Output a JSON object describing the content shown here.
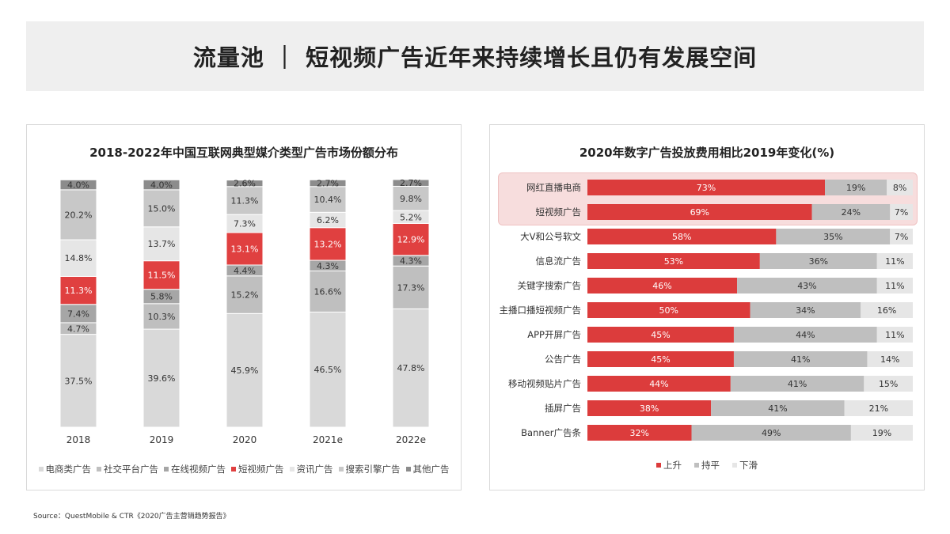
{
  "header": {
    "title": "流量池 ｜ 短视频广告近年来持续增长且仍有发展空间"
  },
  "left_chart": {
    "title": "2018-2022年中国互联网典型媒介类型广告市场份额分布",
    "legend": [
      "电商类广告",
      "社交平台广告",
      "在线视频广告",
      "短视频广告",
      "资讯广告",
      "搜索引擎广告",
      "其他广告"
    ],
    "legend_colors": [
      "#d9d9d9",
      "#bfbfbf",
      "#a6a6a6",
      "#e04040",
      "#e6e6e6",
      "#c8c8c8",
      "#8c8c8c"
    ]
  },
  "right_chart": {
    "title": "2020年数字广告投放费用相比2019年变化(%)",
    "legend": [
      "上升",
      "持平",
      "下滑"
    ],
    "legend_colors": [
      "#dc3c3c",
      "#bfbfbf",
      "#e6e6e6"
    ]
  },
  "source": "Source：QuestMobile & CTR《2020广告主营销趋势报告》",
  "chart_data": [
    {
      "type": "bar",
      "stacked": true,
      "percent": true,
      "title": "2018-2022年中国互联网典型媒介类型广告市场份额分布",
      "categories": [
        "2018",
        "2019",
        "2020",
        "2021e",
        "2022e"
      ],
      "series": [
        {
          "name": "电商类广告",
          "color": "#d9d9d9",
          "values": [
            37.5,
            39.6,
            45.9,
            46.5,
            47.8
          ]
        },
        {
          "name": "社交平台广告",
          "color": "#bfbfbf",
          "values": [
            4.7,
            10.3,
            15.2,
            16.6,
            17.3
          ]
        },
        {
          "name": "在线视频广告",
          "color": "#a6a6a6",
          "values": [
            7.4,
            5.8,
            4.4,
            4.3,
            4.3
          ]
        },
        {
          "name": "短视频广告",
          "color": "#e04040",
          "values": [
            11.3,
            11.5,
            13.1,
            13.2,
            12.9
          ]
        },
        {
          "name": "资讯广告",
          "color": "#e6e6e6",
          "values": [
            14.8,
            13.7,
            7.3,
            6.2,
            5.2
          ]
        },
        {
          "name": "搜索引擎广告",
          "color": "#c8c8c8",
          "values": [
            20.2,
            15.0,
            11.3,
            10.4,
            9.8
          ]
        },
        {
          "name": "其他广告",
          "color": "#8c8c8c",
          "values": [
            4.0,
            4.0,
            2.6,
            2.7,
            2.7
          ]
        }
      ]
    },
    {
      "type": "bar",
      "orientation": "horizontal",
      "stacked": true,
      "percent": true,
      "title": "2020年数字广告投放费用相比2019年变化(%)",
      "categories": [
        "网红直播电商",
        "短视频广告",
        "大V和公号软文",
        "信息流广告",
        "关键字搜索广告",
        "主播口播短视频广告",
        "APP开屏广告",
        "公告广告",
        "移动视频贴片广告",
        "插屏广告",
        "Banner广告条"
      ],
      "highlighted_categories": [
        "网红直播电商",
        "短视频广告"
      ],
      "series": [
        {
          "name": "上升",
          "color": "#dc3c3c",
          "values": [
            73,
            69,
            58,
            53,
            46,
            50,
            45,
            45,
            44,
            38,
            32
          ]
        },
        {
          "name": "持平",
          "color": "#bfbfbf",
          "values": [
            19,
            24,
            35,
            36,
            43,
            34,
            44,
            41,
            41,
            41,
            49
          ]
        },
        {
          "name": "下滑",
          "color": "#e6e6e6",
          "values": [
            8,
            7,
            7,
            11,
            11,
            16,
            11,
            14,
            15,
            21,
            19
          ]
        }
      ]
    }
  ]
}
